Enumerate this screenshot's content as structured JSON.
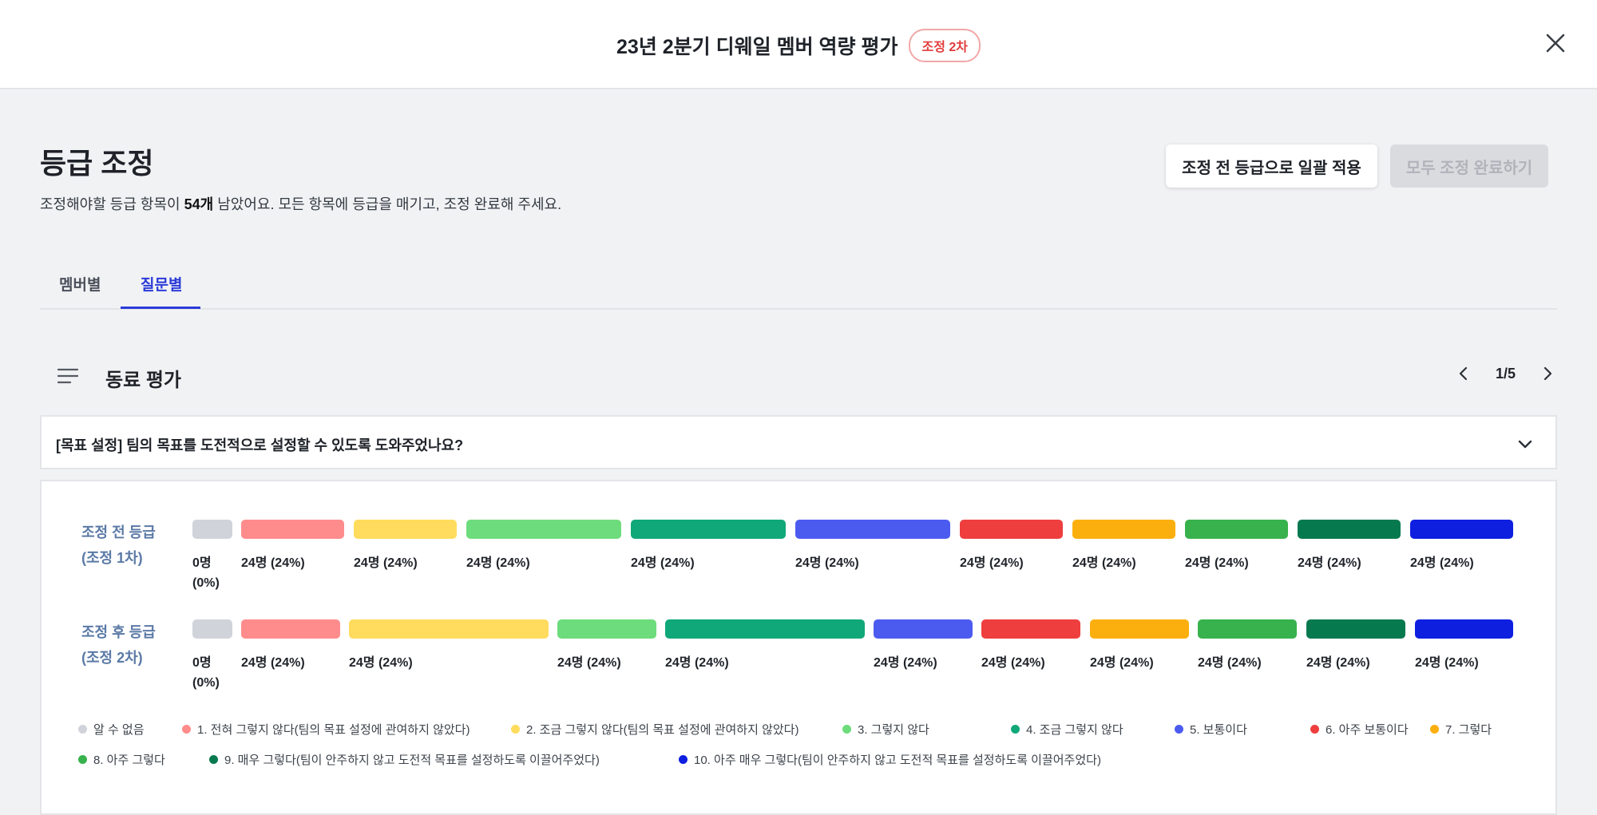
{
  "header": {
    "title": "23년 2분기 디웨일 멤버 역량 평가",
    "badge": "조정 2차"
  },
  "page": {
    "title": "등급 조정",
    "subtitle_pre": "조정해야할 등급 항목이 ",
    "subtitle_count": "54개",
    "subtitle_post": " 남았어요. 모든 항목에 등급을 매기고, 조정 완료해 주세요.",
    "apply_button": "조정 전 등급으로 일괄 적용",
    "done_button": "모두 조정 완료하기"
  },
  "tabs": [
    {
      "label": "멤버별",
      "active": false
    },
    {
      "label": "질문별",
      "active": true
    }
  ],
  "section": {
    "icon": "menu-lines-icon",
    "title": "동료 평가",
    "page": "1/5"
  },
  "question": {
    "text": "[목표 설정] 팀의 목표를 도전적으로 설정할 수 있도록 도와주었나요?"
  },
  "chart_data": {
    "type": "bar",
    "rows": [
      {
        "label_line1": "조정 전 등급",
        "label_line2": "(조정 1차)",
        "labels": [
          "0명\n(0%)",
          "24명 (24%)",
          "24명 (24%)",
          "24명 (24%)",
          "24명 (24%)",
          "24명 (24%)",
          "24명 (24%)",
          "24명 (24%)",
          "24명 (24%)",
          "24명 (24%)",
          "24명 (24%)"
        ]
      },
      {
        "label_line1": "조정 후 등급",
        "label_line2": "(조정 2차)",
        "labels": [
          "0명\n(0%)",
          "24명 (24%)",
          "24명 (24%)",
          "24명 (24%)",
          "24명 (24%)",
          "24명 (24%)",
          "24명 (24%)",
          "24명 (24%)",
          "24명 (24%)",
          "24명 (24%)",
          "24명 (24%)"
        ]
      }
    ]
  },
  "legend": [
    {
      "label": "알 수 없음",
      "color": "#d0d4da"
    },
    {
      "label": "1. 전혀 그렇지 않다(팀의 목표 설정에 관여하지 않았다)",
      "color": "#ff8c8c"
    },
    {
      "label": "2. 조금 그렇지 않다(팀의 목표 설정에 관여하지 않았다)",
      "color": "#ffdc5e"
    },
    {
      "label": "3. 그렇지 않다",
      "color": "#6ddc7c"
    },
    {
      "label": "4. 조금 그렇지 않다",
      "color": "#10a878"
    },
    {
      "label": "5. 보통이다",
      "color": "#4c5bef"
    },
    {
      "label": "6. 아주 보통이다",
      "color": "#ee3e3e"
    },
    {
      "label": "7. 그렇다",
      "color": "#fbaf0e"
    },
    {
      "label": "8. 아주 그렇다",
      "color": "#38b24c"
    },
    {
      "label": "9. 매우 그렇다(팀이 안주하지 않고 도전적 목표를 설정하도록 이끌어주었다)",
      "color": "#07794f"
    },
    {
      "label": "10. 아주 매우 그렇다(팀이 안주하지 않고 도전적 목표를 설정하도록 이끌어주었다)",
      "color": "#0e1fe0"
    }
  ]
}
